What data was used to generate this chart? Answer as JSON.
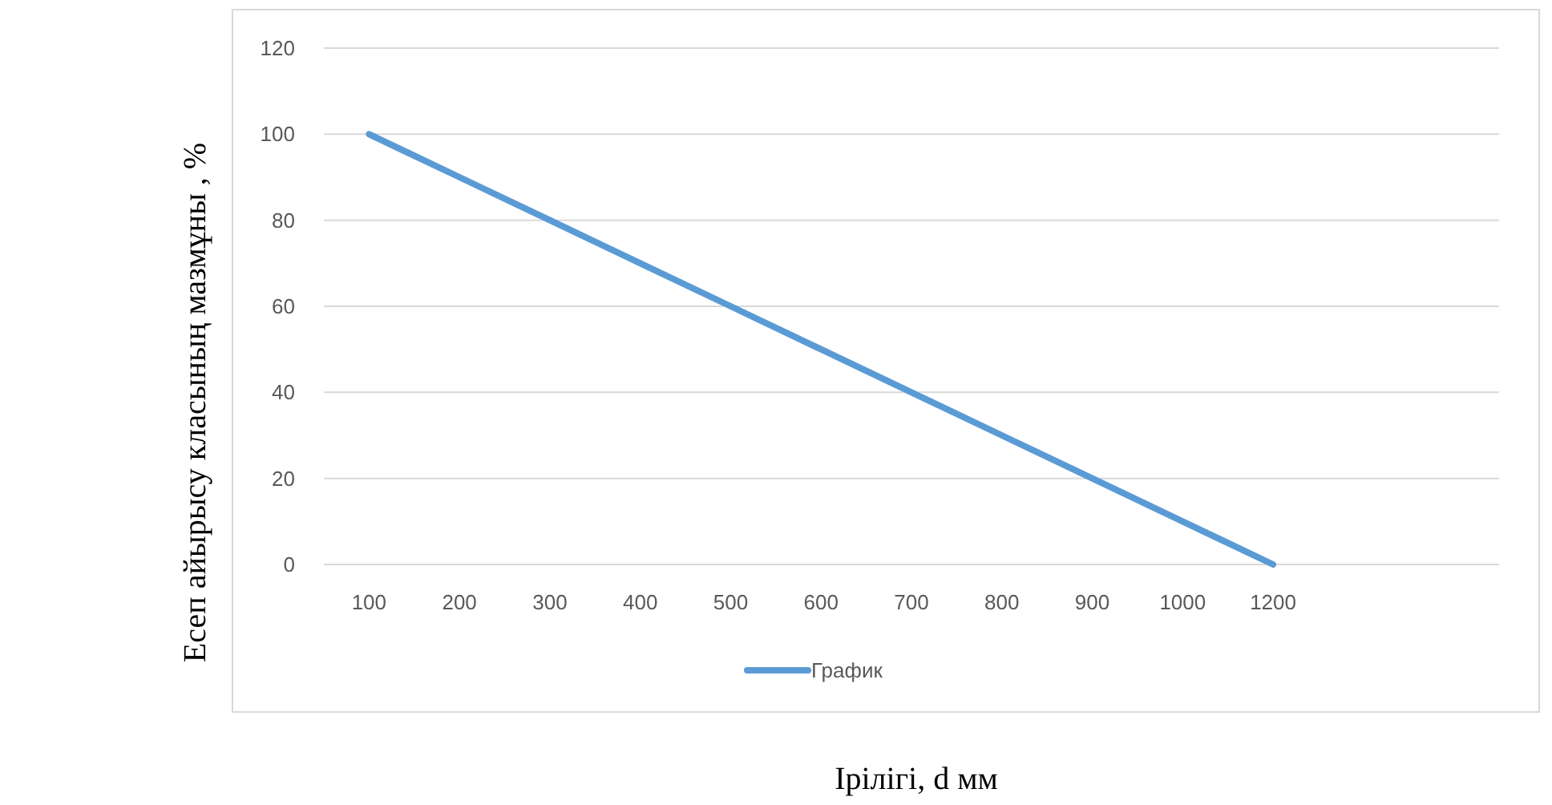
{
  "chart_data": {
    "type": "line",
    "xlabel": "Ірілігі, d мм",
    "ylabel": "Есеп айырысу класының мазмұны , %",
    "categories": [
      "100",
      "200",
      "300",
      "400",
      "500",
      "600",
      "700",
      "800",
      "900",
      "1000",
      "1200",
      null,
      null
    ],
    "series": [
      {
        "name": "График",
        "color": "#5b9bd5",
        "values": [
          100,
          90,
          80,
          70,
          60,
          50,
          40,
          30,
          20,
          10,
          0,
          null,
          null
        ]
      }
    ],
    "ylim": [
      0,
      120
    ],
    "yticks": [
      0,
      20,
      40,
      60,
      80,
      100,
      120
    ],
    "grid": "y",
    "legend": "bottom",
    "marker": "none",
    "line_style": "solid"
  }
}
